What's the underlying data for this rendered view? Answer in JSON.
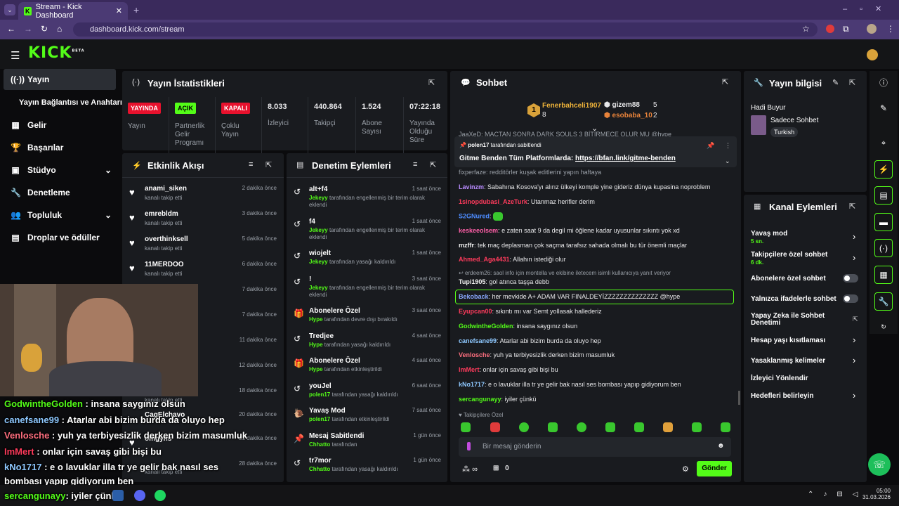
{
  "browser": {
    "tab_title": "Stream - Kick Dashboard",
    "url": "dashboard.kick.com/stream"
  },
  "header": {
    "logo": "KICK",
    "logo_sup": "BETA"
  },
  "nav": [
    {
      "label": "Yayın",
      "icon": "radio-icon"
    },
    {
      "label": "Yayın Bağlantısı ve Anahtarı"
    },
    {
      "label": "Gelir",
      "icon": "revenue-icon"
    },
    {
      "label": "Başarılar",
      "icon": "trophy-icon"
    },
    {
      "label": "Stüdyo",
      "icon": "studio-icon"
    },
    {
      "label": "Denetleme",
      "icon": "wrench-icon"
    },
    {
      "label": "Topluluk",
      "icon": "community-icon"
    },
    {
      "label": "Droplar ve ödüller",
      "icon": "drops-icon"
    }
  ],
  "stats": {
    "title": "Yayın İstatistikleri",
    "live_badge": "YAYINDA",
    "live_label": "Yayın",
    "partner_badge": "AÇIK",
    "partner_label": "Partnerlik Gelir Programı",
    "multi_badge": "KAPALI",
    "multi_label": "Çoklu Yayın",
    "viewers": "8.033",
    "viewers_label": "İzleyici",
    "followers": "440.864",
    "followers_label": "Takipçi",
    "subs": "1.524",
    "subs_label": "Abone Sayısı",
    "uptime": "07:22:18",
    "uptime_label": "Yayında Olduğu Süre"
  },
  "activity": {
    "title": "Etkinlik Akışı",
    "items": [
      {
        "name": "anami_siken",
        "sub": "kanalı takip etti",
        "time": "2 dakika önce"
      },
      {
        "name": "emrebldm",
        "sub": "kanalı takip etti",
        "time": "3 dakika önce"
      },
      {
        "name": "overthinksell",
        "sub": "kanalı takip etti",
        "time": "5 dakika önce"
      },
      {
        "name": "11MERDOO",
        "sub": "kanalı takip etti",
        "time": "6 dakika önce"
      },
      {
        "name": "",
        "sub": "",
        "time": "7 dakika önce"
      },
      {
        "name": "",
        "sub": "",
        "time": "7 dakika önce"
      },
      {
        "name": "",
        "sub": "",
        "time": "11 dakika önce"
      },
      {
        "name": "",
        "sub": "",
        "time": "12 dakika önce"
      },
      {
        "name": "",
        "sub": "kanalı takip etti",
        "time": "18 dakika önce"
      },
      {
        "name": "CagElchavo",
        "sub": "",
        "time": "20 dakika önce"
      },
      {
        "name": "omgyns",
        "sub": "",
        "time": "21 dakika önce"
      },
      {
        "name": "",
        "sub": "kanalı takip etti",
        "time": "28 dakika önce"
      }
    ]
  },
  "moderation": {
    "title": "Denetim Eylemleri",
    "items": [
      {
        "name": "alt+f4",
        "by": "Jekeyy",
        "desc": "tarafından engellenmiş bir terim olarak eklendi",
        "time": "1 saat önce",
        "icon": "undo-icon"
      },
      {
        "name": "f4",
        "by": "Jekeyy",
        "desc": "tarafından engellenmiş bir terim olarak eklendi",
        "time": "1 saat önce",
        "icon": "undo-icon"
      },
      {
        "name": "wiojelt",
        "by": "Jekeyy",
        "desc": "tarafından yasağı kaldırıldı",
        "time": "1 saat önce",
        "icon": "undo-icon"
      },
      {
        "name": "!",
        "by": "Jekeyy",
        "desc": "tarafından engellenmiş bir terim olarak eklendi",
        "time": "3 saat önce",
        "icon": "undo-icon"
      },
      {
        "name": "Abonelere Özel",
        "by": "Hype",
        "desc": "tarafından devre dışı bırakıldı",
        "time": "3 saat önce",
        "icon": "gift-icon"
      },
      {
        "name": "Tredjee",
        "by": "Hype",
        "desc": "tarafından yasağı kaldırıldı",
        "time": "4 saat önce",
        "icon": "undo-icon"
      },
      {
        "name": "Abonelere Özel",
        "by": "Hype",
        "desc": "tarafından etkinleştirildi",
        "time": "4 saat önce",
        "icon": "gift-icon"
      },
      {
        "name": "youJel",
        "by": "polen17",
        "desc": "tarafından yasağı kaldırıldı",
        "time": "6 saat önce",
        "icon": "undo-icon"
      },
      {
        "name": "Yavaş Mod",
        "by": "polen17",
        "desc": "tarafından etkinleştirildi",
        "time": "7 saat önce",
        "icon": "snail-icon"
      },
      {
        "name": "Mesaj Sabitlendi",
        "by": "Chhatto",
        "desc": "tarafından",
        "time": "1 gün önce",
        "icon": "pin-icon"
      },
      {
        "name": "tr7mor",
        "by": "Chhatto",
        "desc": "tarafından yasağı kaldırıldı",
        "time": "1 gün önce",
        "icon": "undo-icon"
      }
    ]
  },
  "chat": {
    "title": "Sohbet",
    "top1_name": "Fenerbahceli1907",
    "top1_count": "8",
    "top2_name": "gizem88",
    "top2_count": "5",
    "top3_name": "esobaba_10",
    "top3_count": "2",
    "pinned_by": "polen17",
    "pinned_suffix": "tarafından sabitlendi",
    "pinned_text": "Gitme Benden Tüm Platformlarda:",
    "pinned_link": "https://bfan.link/gitme-benden",
    "behind": "JaaXeD: MAÇTAN SONRA DARK SOULS 3 BİTİRMECE OLUR MU @hype",
    "behind2": "fixperfaze: redditörler kuşak editlerini yapın haftaya",
    "messages": [
      {
        "user": "Lavinzm",
        "color": "#b98cff",
        "text": "Sabahına Kosova'yı alırız ülkeyi komple yine gideriz dünya kupasina noproblem"
      },
      {
        "user": "1sinopdubasi_AzeTurk",
        "color": "#ff3b5c",
        "text": "Utanmaz herifler derim"
      },
      {
        "user": "S2GNured",
        "color": "#4d8cff",
        "text": ""
      },
      {
        "user": "keskeeolsem",
        "color": "#ff5fa8",
        "text": "e zaten saat 9 da degil mi öğlene kadar uyusunlar sıkıntı yok xd"
      },
      {
        "user": "mzffr",
        "color": "#f2f2f2",
        "text": "tek maç deplasman çok saçma tarafsız sahada olmalı bu tür önemli maçlar"
      },
      {
        "user": "Ahmed_Aga4431",
        "color": "#ff3b5c",
        "text": "Allahın istediği olur"
      },
      {
        "user": "Tupi1905",
        "color": "#f2f2f2",
        "text": "gol atınca taşşa debb"
      },
      {
        "user": "Bekoback",
        "color": "#8aa8ff",
        "text": "her mevkide A+ ADAM VAR FINALDEYİZZZZZZZZZZZZZZ @hype"
      },
      {
        "user": "Eyupcan00",
        "color": "#ff3b5c",
        "text": "sıkıntı mı var Semt yollasak hallederiz"
      },
      {
        "user": "GodwintheGolden",
        "color": "#53fc18",
        "text": "insana saygınız olsun"
      },
      {
        "user": "canefsane99",
        "color": "#8ec8ff",
        "text": "Atarlar abi bizim burda da oluyo hep"
      },
      {
        "user": "Venlosche",
        "color": "#ff6f7f",
        "text": "yuh ya terbiyesizlik derken bizim masumluk"
      },
      {
        "user": "ImMert",
        "color": "#ff3b5c",
        "text": "onlar için savaş gibi bişi bu"
      },
      {
        "user": "kNo1717",
        "color": "#8ec8ff",
        "text": "e o lavuklar illa tr ye gelir bak nasıl ses bombası yapıp gidiyorum ben"
      },
      {
        "user": "sercangunayy",
        "color": "#53fc18",
        "text": "iyiler çünkü"
      }
    ],
    "reply_note": "erdeem26: saol info için montella ve ekibine iletecem isimli kullanıcıya yanıt veriyor",
    "followers_only": "Takipçilere Özel",
    "input_placeholder": "Bir mesaj gönderin",
    "send": "Gönder",
    "viewers_icon": "∞",
    "gift_count": "0"
  },
  "stream_info": {
    "title": "Yayın bilgisi",
    "stream_title": "Hadi Buyur",
    "category": "Sadece Sohbet",
    "language": "Turkish"
  },
  "channel_actions": {
    "title": "Kanal Eylemleri",
    "items": [
      {
        "label": "Yavaş mod",
        "sub": "5 sn."
      },
      {
        "label": "Takipçilere özel sohbet",
        "sub": "6 dk."
      },
      {
        "label": "Abonelere özel sohbet"
      },
      {
        "label": "Yalnızca ifadelerle sohbet"
      },
      {
        "label": "Yapay Zeka ile Sohbet Denetimi"
      },
      {
        "label": "Hesap yaşı kısıtlaması"
      },
      {
        "label": "Yasaklanmış kelimeler"
      },
      {
        "label": "İzleyici Yönlendir"
      },
      {
        "label": "Hedefleri belirleyin"
      }
    ]
  },
  "overlay": [
    {
      "user": "GodwintheGolden",
      "color": "#53fc18",
      "text": "insana saygınız olsun"
    },
    {
      "user": "canefsane99",
      "color": "#8ec8ff",
      "text": "Atarlar abi bizim burda da oluyo hep"
    },
    {
      "user": "Venlosche",
      "color": "#ff6f7f",
      "text": "yuh ya terbiyesizlik derken bizim masumluk"
    },
    {
      "user": "ImMert",
      "color": "#ff3b5c",
      "text": "onlar için savaş gibi bişi bu"
    },
    {
      "user": "kNo1717",
      "color": "#8ec8ff",
      "text": "e o lavuklar illa tr ye gelir bak nasıl ses"
    },
    {
      "user": "",
      "color": "#ffffff",
      "text": "bombası yapıp gidiyorum ben"
    },
    {
      "user": "sercangunayy",
      "color": "#53fc18",
      "text": "iyiler çünkü"
    }
  ],
  "taskbar": {
    "time": "05:00",
    "date": "31.03.2026"
  },
  "colors": {
    "accent": "#53fc18",
    "panel": "#191b1f",
    "bg": "#0b0b0d",
    "live": "#e8112d"
  }
}
